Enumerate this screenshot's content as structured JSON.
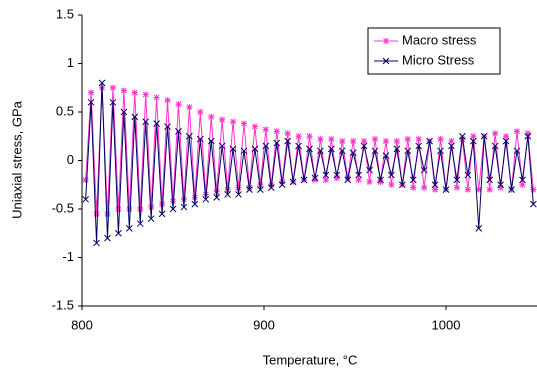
{
  "chart_data": {
    "type": "line",
    "x_label": "Temperature, °C",
    "y_label": "Uniaxial stress, GPa",
    "x": [
      802,
      805,
      808,
      811,
      814,
      817,
      820,
      823,
      826,
      829,
      832,
      835,
      838,
      841,
      844,
      847,
      850,
      853,
      856,
      859,
      862,
      865,
      868,
      871,
      874,
      877,
      880,
      883,
      886,
      889,
      892,
      895,
      898,
      901,
      904,
      907,
      910,
      913,
      916,
      919,
      922,
      925,
      928,
      931,
      934,
      937,
      940,
      943,
      946,
      949,
      952,
      955,
      958,
      961,
      964,
      967,
      970,
      973,
      976,
      979,
      982,
      985,
      988,
      991,
      994,
      997,
      1000,
      1003,
      1006,
      1009,
      1012,
      1015,
      1018,
      1021,
      1024,
      1027,
      1030,
      1033,
      1036,
      1039,
      1042,
      1045,
      1048
    ],
    "series": [
      {
        "name": "Macro stress",
        "color": "#ff33cc",
        "marker": "star",
        "values": [
          -0.2,
          0.7,
          -0.55,
          0.75,
          -0.55,
          0.75,
          -0.5,
          0.72,
          -0.5,
          0.7,
          -0.5,
          0.68,
          -0.48,
          0.65,
          -0.45,
          0.62,
          -0.42,
          0.58,
          -0.4,
          0.55,
          -0.38,
          0.5,
          -0.35,
          0.45,
          -0.32,
          0.42,
          -0.3,
          0.4,
          -0.28,
          0.38,
          -0.28,
          0.35,
          -0.25,
          0.32,
          -0.25,
          0.3,
          -0.22,
          0.28,
          -0.22,
          0.25,
          -0.2,
          0.25,
          -0.2,
          0.22,
          -0.2,
          0.22,
          -0.18,
          0.2,
          -0.18,
          0.2,
          -0.2,
          0.2,
          -0.22,
          0.22,
          -0.22,
          0.2,
          -0.25,
          0.2,
          -0.25,
          0.22,
          -0.28,
          0.22,
          -0.28,
          0.2,
          -0.3,
          0.22,
          -0.3,
          0.2,
          -0.28,
          0.22,
          -0.3,
          0.25,
          -0.3,
          0.25,
          -0.3,
          0.28,
          -0.28,
          0.25,
          -0.3,
          0.3,
          -0.25,
          0.28,
          -0.3
        ]
      },
      {
        "name": "Micro Stress",
        "color": "#000066",
        "marker": "x",
        "values": [
          -0.4,
          0.6,
          -0.85,
          0.8,
          -0.8,
          0.6,
          -0.75,
          0.5,
          -0.7,
          0.45,
          -0.65,
          0.4,
          -0.6,
          0.38,
          -0.55,
          0.35,
          -0.5,
          0.3,
          -0.48,
          0.25,
          -0.45,
          0.22,
          -0.4,
          0.2,
          -0.38,
          0.15,
          -0.35,
          0.12,
          -0.35,
          0.1,
          -0.3,
          0.12,
          -0.3,
          0.15,
          -0.28,
          0.18,
          -0.25,
          0.2,
          -0.22,
          0.15,
          -0.2,
          0.12,
          -0.18,
          0.1,
          -0.15,
          0.12,
          -0.15,
          0.1,
          -0.2,
          0.08,
          -0.15,
          0.15,
          -0.1,
          0.1,
          -0.2,
          0.05,
          -0.15,
          0.12,
          -0.25,
          0.1,
          -0.2,
          0.15,
          -0.1,
          0.2,
          -0.25,
          0.1,
          -0.3,
          0.15,
          -0.2,
          0.25,
          -0.15,
          0.2,
          -0.7,
          0.25,
          -0.2,
          0.15,
          -0.25,
          0.2,
          -0.3,
          0.1,
          -0.2,
          0.25,
          -0.45
        ]
      }
    ],
    "xlim": [
      800,
      1050
    ],
    "xticks": [
      800,
      900,
      1000
    ],
    "ylim": [
      -1.5,
      1.5
    ],
    "yticks": [
      -1.5,
      -1,
      -0.5,
      0,
      0.5,
      1,
      1.5
    ],
    "grid": false,
    "legend": "upper right"
  }
}
